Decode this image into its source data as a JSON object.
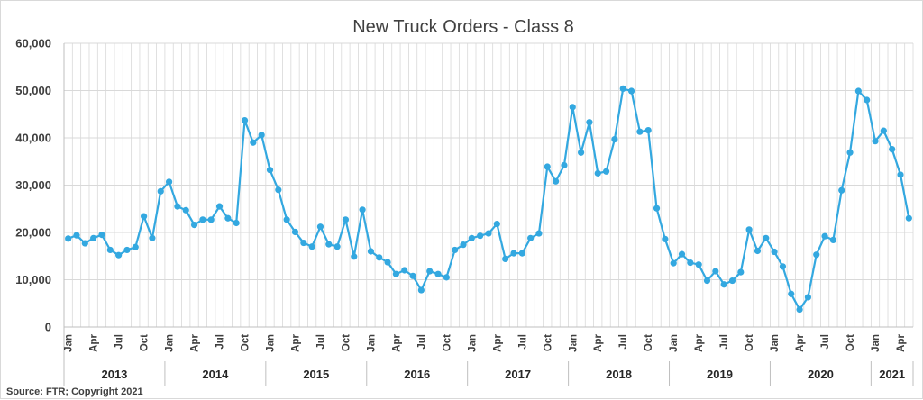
{
  "chart_data": {
    "type": "line",
    "title": "New Truck Orders - Class 8",
    "source": "Source: FTR; Copyright 2021",
    "xlabel": "",
    "ylabel": "",
    "ylim": [
      0,
      60000
    ],
    "yticks": [
      "0",
      "10,000",
      "20,000",
      "30,000",
      "40,000",
      "50,000",
      "60,000"
    ],
    "grid": "vertical-and-horizontal",
    "series_color": "#33a8e0",
    "month_labels": [
      "Jan",
      "Apr",
      "Jul",
      "Oct"
    ],
    "years": [
      "2013",
      "2014",
      "2015",
      "2016",
      "2017",
      "2018",
      "2019",
      "2020",
      "2021"
    ],
    "x": [
      "2013-01",
      "2013-02",
      "2013-03",
      "2013-04",
      "2013-05",
      "2013-06",
      "2013-07",
      "2013-08",
      "2013-09",
      "2013-10",
      "2013-11",
      "2013-12",
      "2014-01",
      "2014-02",
      "2014-03",
      "2014-04",
      "2014-05",
      "2014-06",
      "2014-07",
      "2014-08",
      "2014-09",
      "2014-10",
      "2014-11",
      "2014-12",
      "2015-01",
      "2015-02",
      "2015-03",
      "2015-04",
      "2015-05",
      "2015-06",
      "2015-07",
      "2015-08",
      "2015-09",
      "2015-10",
      "2015-11",
      "2015-12",
      "2016-01",
      "2016-02",
      "2016-03",
      "2016-04",
      "2016-05",
      "2016-06",
      "2016-07",
      "2016-08",
      "2016-09",
      "2016-10",
      "2016-11",
      "2016-12",
      "2017-01",
      "2017-02",
      "2017-03",
      "2017-04",
      "2017-05",
      "2017-06",
      "2017-07",
      "2017-08",
      "2017-09",
      "2017-10",
      "2017-11",
      "2017-12",
      "2018-01",
      "2018-02",
      "2018-03",
      "2018-04",
      "2018-05",
      "2018-06",
      "2018-07",
      "2018-08",
      "2018-09",
      "2018-10",
      "2018-11",
      "2018-12",
      "2019-01",
      "2019-02",
      "2019-03",
      "2019-04",
      "2019-05",
      "2019-06",
      "2019-07",
      "2019-08",
      "2019-09",
      "2019-10",
      "2019-11",
      "2019-12",
      "2020-01",
      "2020-02",
      "2020-03",
      "2020-04",
      "2020-05",
      "2020-06",
      "2020-07",
      "2020-08",
      "2020-09",
      "2020-10",
      "2020-11",
      "2020-12",
      "2021-01",
      "2021-02",
      "2021-03",
      "2021-04",
      "2021-05"
    ],
    "series": [
      {
        "values": [
          18700,
          19400,
          17700,
          18800,
          19500,
          16300,
          15200,
          16300,
          16900,
          23400,
          18800,
          28700,
          30700,
          25500,
          24700,
          21600,
          22700,
          22700,
          25500,
          23000,
          22000,
          43700,
          39000,
          40600,
          33200,
          29000,
          22700,
          20100,
          17800,
          17000,
          21200,
          17500,
          17000,
          22700,
          14900,
          24800,
          16000,
          14700,
          13700,
          11200,
          12000,
          10800,
          7800,
          11800,
          11200,
          10500,
          16300,
          17400,
          18800,
          19300,
          19800,
          21800,
          14400,
          15600,
          15600,
          18800,
          19800,
          33900,
          30800,
          34200,
          46500,
          36900,
          43300,
          32500,
          32900,
          39700,
          50400,
          49900,
          41300,
          41600,
          25100,
          18600,
          13500,
          15400,
          13600,
          13200,
          9800,
          11800,
          9000,
          9800,
          11600,
          20600,
          16100,
          18800,
          15900,
          12800,
          7000,
          3700,
          6300,
          15300,
          19200,
          18400,
          28900,
          36900,
          49900,
          48000,
          39300,
          41500,
          37600,
          32200,
          23000
        ]
      }
    ]
  }
}
